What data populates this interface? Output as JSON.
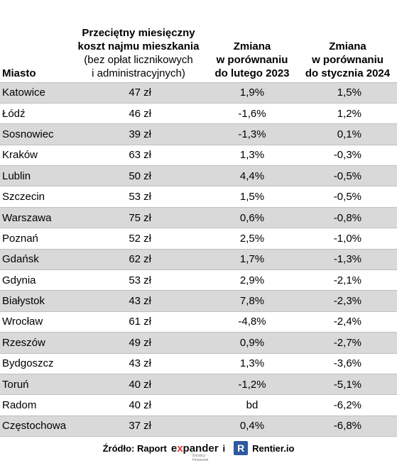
{
  "header": {
    "city": "Miasto",
    "cost_line1": "Przeciętny miesięczny",
    "cost_line2": "koszt najmu mieszkania",
    "cost_line3": "(bez opłat licznikowych",
    "cost_line4": "i administracyjnych)",
    "change1_line1": "Zmiana",
    "change1_line2": "w porównaniu",
    "change1_line3": "do lutego 2023",
    "change2_line1": "Zmiana",
    "change2_line2": "w porównaniu",
    "change2_line3": "do stycznia 2024"
  },
  "rows": [
    {
      "city": "Katowice",
      "cost": "47 zł",
      "change_feb2023": "1,9%",
      "change_jan2024": "1,5%"
    },
    {
      "city": "Łódź",
      "cost": "46 zł",
      "change_feb2023": "-1,6%",
      "change_jan2024": "1,2%"
    },
    {
      "city": "Sosnowiec",
      "cost": "39 zł",
      "change_feb2023": "-1,3%",
      "change_jan2024": "0,1%"
    },
    {
      "city": "Kraków",
      "cost": "63 zł",
      "change_feb2023": "1,3%",
      "change_jan2024": "-0,3%"
    },
    {
      "city": "Lublin",
      "cost": "50 zł",
      "change_feb2023": "4,4%",
      "change_jan2024": "-0,5%"
    },
    {
      "city": "Szczecin",
      "cost": "53 zł",
      "change_feb2023": "1,5%",
      "change_jan2024": "-0,5%"
    },
    {
      "city": "Warszawa",
      "cost": "75 zł",
      "change_feb2023": "0,6%",
      "change_jan2024": "-0,8%"
    },
    {
      "city": "Poznań",
      "cost": "52 zł",
      "change_feb2023": "2,5%",
      "change_jan2024": "-1,0%"
    },
    {
      "city": "Gdańsk",
      "cost": "62 zł",
      "change_feb2023": "1,7%",
      "change_jan2024": "-1,3%"
    },
    {
      "city": "Gdynia",
      "cost": "53 zł",
      "change_feb2023": "2,9%",
      "change_jan2024": "-2,1%"
    },
    {
      "city": "Białystok",
      "cost": "43 zł",
      "change_feb2023": "7,8%",
      "change_jan2024": "-2,3%"
    },
    {
      "city": "Wrocław",
      "cost": "61 zł",
      "change_feb2023": "-4,8%",
      "change_jan2024": "-2,4%"
    },
    {
      "city": "Rzeszów",
      "cost": "49 zł",
      "change_feb2023": "0,9%",
      "change_jan2024": "-2,7%"
    },
    {
      "city": "Bydgoszcz",
      "cost": "43 zł",
      "change_feb2023": "1,3%",
      "change_jan2024": "-3,6%"
    },
    {
      "city": "Toruń",
      "cost": "40 zł",
      "change_feb2023": "-1,2%",
      "change_jan2024": "-5,1%"
    },
    {
      "city": "Radom",
      "cost": "40 zł",
      "change_feb2023": "bd",
      "change_jan2024": "-6,2%"
    },
    {
      "city": "Częstochowa",
      "cost": "37 zł",
      "change_feb2023": "0,4%",
      "change_jan2024": "-6,8%"
    }
  ],
  "footer": {
    "source_label": "Źródło: Raport",
    "expander_prefix": "e",
    "expander_x": "x",
    "expander_rest": "pander",
    "expander_sub": "Doradcy Finansowi",
    "conjunction": "i",
    "rentier_letter": "R",
    "rentier_name": "Rentier.io"
  },
  "colors": {
    "shade": "#d9d9d9",
    "expander_accent": "#e53935",
    "rentier_blue": "#2d5a9e"
  }
}
